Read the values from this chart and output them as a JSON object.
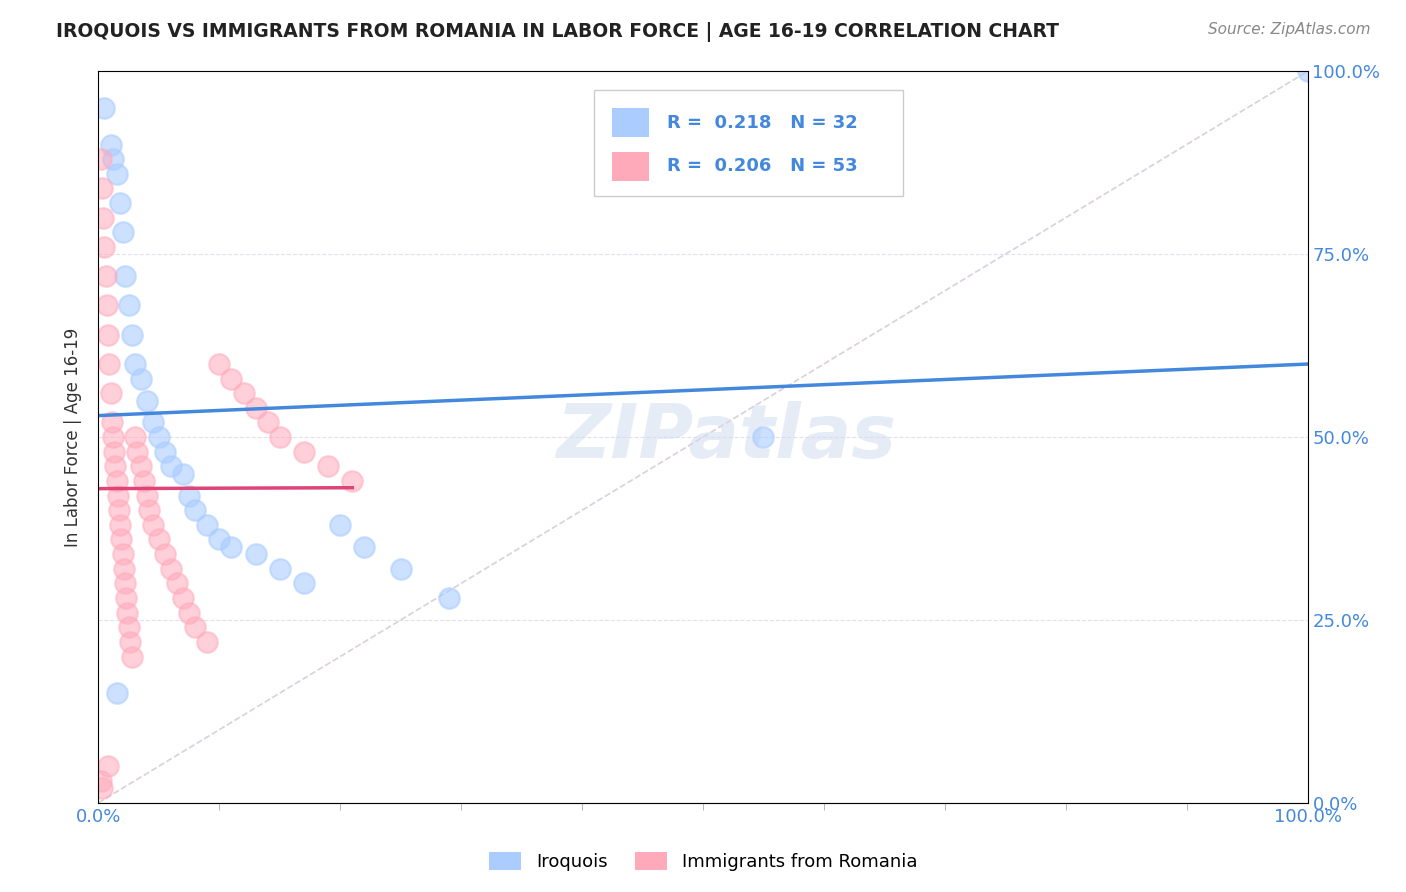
{
  "title": "IROQUOIS VS IMMIGRANTS FROM ROMANIA IN LABOR FORCE | AGE 16-19 CORRELATION CHART",
  "source": "Source: ZipAtlas.com",
  "ylabel": "In Labor Force | Age 16-19",
  "legend_label1": "Iroquois",
  "legend_label2": "Immigrants from Romania",
  "R1": 0.218,
  "N1": 32,
  "R2": 0.206,
  "N2": 53,
  "color1": "#aaccff",
  "color2": "#ffaabb",
  "trendline1_color": "#4488dd",
  "trendline2_color": "#dd4477",
  "watermark": "ZIPatlas",
  "iroquois_x": [
    0.005,
    0.01,
    0.012,
    0.015,
    0.018,
    0.02,
    0.022,
    0.025,
    0.028,
    0.03,
    0.035,
    0.04,
    0.045,
    0.05,
    0.055,
    0.06,
    0.07,
    0.075,
    0.08,
    0.09,
    0.1,
    0.11,
    0.13,
    0.15,
    0.17,
    0.2,
    0.22,
    0.25,
    0.29,
    0.55,
    1.0,
    0.015
  ],
  "iroquois_y": [
    0.95,
    0.9,
    0.88,
    0.86,
    0.82,
    0.78,
    0.72,
    0.68,
    0.64,
    0.6,
    0.58,
    0.55,
    0.52,
    0.5,
    0.48,
    0.46,
    0.45,
    0.42,
    0.4,
    0.38,
    0.36,
    0.35,
    0.34,
    0.32,
    0.3,
    0.38,
    0.35,
    0.32,
    0.28,
    0.5,
    1.0,
    0.15
  ],
  "romania_x": [
    0.002,
    0.003,
    0.004,
    0.005,
    0.006,
    0.007,
    0.008,
    0.009,
    0.01,
    0.011,
    0.012,
    0.013,
    0.014,
    0.015,
    0.016,
    0.017,
    0.018,
    0.019,
    0.02,
    0.021,
    0.022,
    0.023,
    0.024,
    0.025,
    0.026,
    0.028,
    0.03,
    0.032,
    0.035,
    0.038,
    0.04,
    0.042,
    0.045,
    0.05,
    0.055,
    0.06,
    0.065,
    0.07,
    0.075,
    0.08,
    0.09,
    0.1,
    0.11,
    0.12,
    0.13,
    0.14,
    0.15,
    0.17,
    0.19,
    0.21,
    0.008,
    0.002,
    0.003
  ],
  "romania_y": [
    0.88,
    0.84,
    0.8,
    0.76,
    0.72,
    0.68,
    0.64,
    0.6,
    0.56,
    0.52,
    0.5,
    0.48,
    0.46,
    0.44,
    0.42,
    0.4,
    0.38,
    0.36,
    0.34,
    0.32,
    0.3,
    0.28,
    0.26,
    0.24,
    0.22,
    0.2,
    0.5,
    0.48,
    0.46,
    0.44,
    0.42,
    0.4,
    0.38,
    0.36,
    0.34,
    0.32,
    0.3,
    0.28,
    0.26,
    0.24,
    0.22,
    0.6,
    0.58,
    0.56,
    0.54,
    0.52,
    0.5,
    0.48,
    0.46,
    0.44,
    0.05,
    0.03,
    0.02
  ],
  "xlim": [
    0.0,
    1.0
  ],
  "ylim": [
    0.0,
    1.0
  ],
  "ytick_values": [
    0.0,
    0.25,
    0.5,
    0.75,
    1.0
  ],
  "ytick_labels": [
    "0.0%",
    "25.0%",
    "50.0%",
    "75.0%",
    "100.0%"
  ],
  "xtick_values": [
    0.0,
    1.0
  ],
  "xtick_labels": [
    "0.0%",
    "100.0%"
  ],
  "grid_color": "#ddddee",
  "background_color": "#ffffff",
  "ref_line_color": "#cccccc",
  "ref_line_style": "--"
}
